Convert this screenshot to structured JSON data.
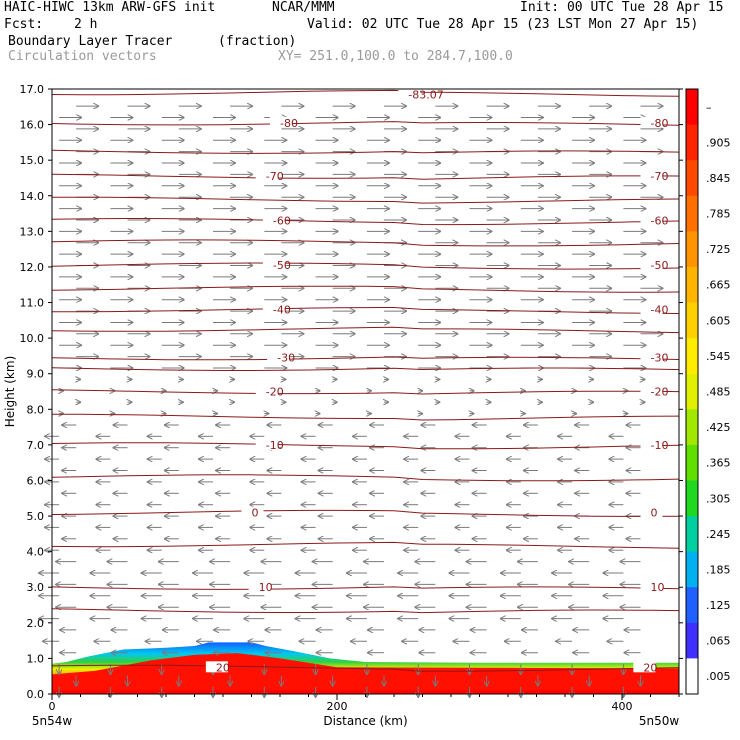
{
  "header": {
    "title_left": "HAIC-HIWC 13km ARW-GFS init",
    "institution": "NCAR/MMM",
    "init": "Init: 00 UTC Tue 28 Apr 15",
    "fcst_label": "Fcst:",
    "fcst_value": "2 h",
    "valid": "Valid: 02 UTC Tue 28 Apr 15 (23 LST Mon 27 Apr 15)",
    "field_name": "Boundary Layer Tracer",
    "field_units": "(fraction)",
    "overlay_name": "Circulation vectors",
    "xy_range": "XY= 251.0,100.0 to 284.7,100.0"
  },
  "colors": {
    "contour": "#8b1a1a",
    "vector": "#7a7a7a",
    "background": "#ffffff"
  },
  "chart_data": {
    "type": "heatmap",
    "ylabel": "Height (km)",
    "xlabel": "Distance (km)",
    "xlim": [
      0,
      440
    ],
    "ylim": [
      0,
      17
    ],
    "x_tick_values": [
      0,
      200,
      400
    ],
    "x_ticks": [
      "0",
      "200",
      "400"
    ],
    "y_tick_values": [
      0,
      1,
      2,
      3,
      4,
      5,
      6,
      7,
      8,
      9,
      10,
      11,
      12,
      13,
      14,
      15,
      16,
      17
    ],
    "y_ticks": [
      "0.0",
      "1.0",
      "2.0",
      "3.0",
      "4.0",
      "5.0",
      "6.0",
      "7.0",
      "8.0",
      "9.0",
      "10.0",
      "11.0",
      "12.0",
      "13.0",
      "14.0",
      "15.0",
      "16.0",
      "17.0"
    ],
    "endpoints": {
      "left": "5n54w",
      "right": "5n50w"
    },
    "temperature_contours": [
      {
        "label": "-83.07",
        "x": 250,
        "y": 16.85
      },
      {
        "label": "-80",
        "y": 16.05,
        "labels_at": [
          160,
          420
        ]
      },
      {
        "label": "-70",
        "y": 14.55,
        "labels_at": [
          150,
          420
        ]
      },
      {
        "label": "-60",
        "y": 13.3,
        "labels_at": [
          155,
          420
        ]
      },
      {
        "label": "-50",
        "y": 12.05,
        "labels_at": [
          155,
          420
        ]
      },
      {
        "label": "-40",
        "y": 10.8,
        "labels_at": [
          155,
          420
        ]
      },
      {
        "label": "-30",
        "y": 9.45,
        "labels_at": [
          158,
          420
        ]
      },
      {
        "label": "-20",
        "y": 8.5,
        "labels_at": [
          150,
          420
        ]
      },
      {
        "label": "-10",
        "y": 7.0,
        "labels_at": [
          150,
          420
        ]
      },
      {
        "label": "0",
        "y": 5.1,
        "labels_at": [
          140,
          420
        ]
      },
      {
        "label": "10",
        "y": 3.0,
        "labels_at": [
          145,
          420
        ]
      },
      {
        "label": "20",
        "y": 0.75,
        "labels_at": [
          115,
          415
        ]
      }
    ],
    "unlabeled_contour_heights": [
      16.9,
      15.25,
      13.9,
      12.7,
      11.4,
      10.25,
      9.15,
      7.8,
      6.1,
      4.2,
      2.35
    ],
    "tracer_region": {
      "description_free": true,
      "base_fraction": 1.0
    },
    "colorbar": {
      "labels": [
        "–",
        ".905",
        ".845",
        ".785",
        ".725",
        ".665",
        ".605",
        ".545",
        ".485",
        ".425",
        ".365",
        ".305",
        ".245",
        ".185",
        ".125",
        ".065",
        ".005"
      ],
      "colors": [
        "#ff0000",
        "#ff2400",
        "#ff4800",
        "#ff7000",
        "#ff9400",
        "#ffb400",
        "#ffd000",
        "#ffec00",
        "#e0f000",
        "#a0e800",
        "#60e000",
        "#20d820",
        "#00d0a0",
        "#00b0f0",
        "#2060ff",
        "#4030ff",
        "#ffffff"
      ]
    }
  }
}
